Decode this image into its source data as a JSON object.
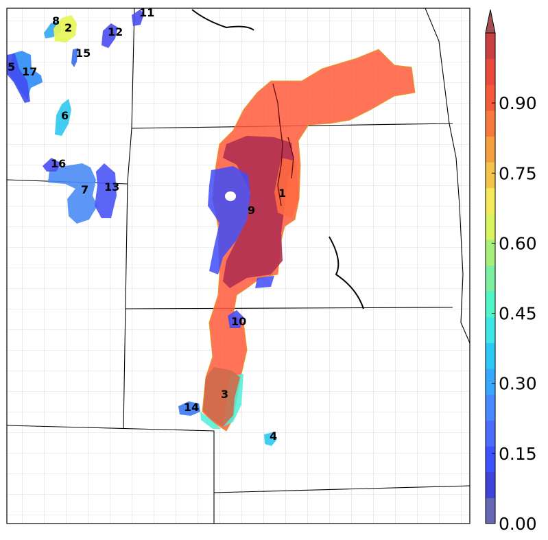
{
  "map": {
    "regions": [
      {
        "id": "1",
        "label": "1",
        "value": 0.88,
        "color": "#ff5a3c"
      },
      {
        "id": "2",
        "label": "2",
        "value": 0.62,
        "color": "#e6f55a"
      },
      {
        "id": "3",
        "label": "3",
        "value": 0.8,
        "color": "#cf6a4a"
      },
      {
        "id": "4",
        "label": "4",
        "value": 0.33,
        "color": "#2dc8f0"
      },
      {
        "id": "5",
        "label": "5",
        "value": 0.1,
        "color": "#3f4cf0"
      },
      {
        "id": "6",
        "label": "6",
        "value": 0.33,
        "color": "#2dc8f0"
      },
      {
        "id": "7",
        "label": "7",
        "value": 0.22,
        "color": "#4a8cf5"
      },
      {
        "id": "8",
        "label": "8",
        "value": 0.3,
        "color": "#33aaf0"
      },
      {
        "id": "9",
        "label": "9",
        "value": 0.99,
        "color": "#b03050"
      },
      {
        "id": "10",
        "label": "10",
        "value": 0.12,
        "color": "#4a4cf0"
      },
      {
        "id": "11",
        "label": "11",
        "value": 0.1,
        "color": "#4a4cf0"
      },
      {
        "id": "12",
        "label": "12",
        "value": 0.1,
        "color": "#4a4cf0"
      },
      {
        "id": "13",
        "label": "13",
        "value": 0.14,
        "color": "#4a55f5"
      },
      {
        "id": "14",
        "label": "14",
        "value": 0.2,
        "color": "#3a7af5"
      },
      {
        "id": "15",
        "label": "15",
        "value": 0.18,
        "color": "#3a6af0"
      },
      {
        "id": "16",
        "label": "16",
        "value": 0.12,
        "color": "#4a4cf0"
      },
      {
        "id": "17",
        "label": "17",
        "value": 0.25,
        "color": "#2b8cf5"
      }
    ]
  },
  "colorbar": {
    "ticks": [
      "0.00",
      "0.15",
      "0.30",
      "0.45",
      "0.60",
      "0.75",
      "0.90"
    ],
    "colors": [
      "#6667b2",
      "#3e44d8",
      "#3c52ff",
      "#4a6cff",
      "#4a88ff",
      "#38a8ff",
      "#2ec8f5",
      "#3ee6e6",
      "#50f5c8",
      "#7af0a0",
      "#a8f07a",
      "#d8f560",
      "#f5e85a",
      "#f5c44a",
      "#f5a040",
      "#f57a3c",
      "#f55a3a",
      "#e84a3e",
      "#c84040"
    ],
    "extend_color": "#a05050"
  }
}
